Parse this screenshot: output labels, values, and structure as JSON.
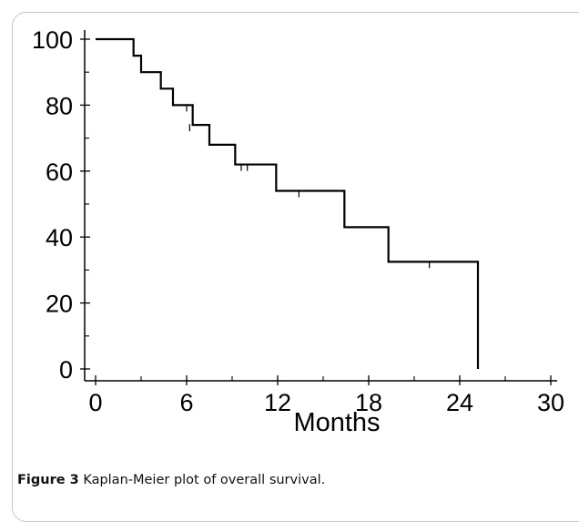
{
  "caption": {
    "label": "Figure 3",
    "text": "Kaplan-Meier plot of overall survival."
  },
  "colors": {
    "line": "#000000",
    "frame": "#c8c8c8"
  },
  "chart_data": {
    "type": "line",
    "subtype": "kaplan-meier-step",
    "title": "",
    "xlabel": "Months",
    "ylabel": "",
    "xlim": [
      0,
      30
    ],
    "ylim": [
      0,
      100
    ],
    "x_ticks": [
      0,
      6,
      12,
      18,
      24,
      30
    ],
    "y_ticks": [
      0,
      20,
      40,
      60,
      80,
      100
    ],
    "grid": false,
    "legend": "none",
    "series": [
      {
        "steps": [
          {
            "x": 0,
            "y": 100
          },
          {
            "x": 2.5,
            "y": 95
          },
          {
            "x": 3.0,
            "y": 90
          },
          {
            "x": 4.3,
            "y": 85
          },
          {
            "x": 5.1,
            "y": 80
          },
          {
            "x": 6.4,
            "y": 74
          },
          {
            "x": 7.5,
            "y": 68
          },
          {
            "x": 9.2,
            "y": 62
          },
          {
            "x": 11.9,
            "y": 54
          },
          {
            "x": 16.4,
            "y": 43
          },
          {
            "x": 19.3,
            "y": 32.5
          },
          {
            "x": 25.2,
            "y": 0
          }
        ],
        "censored": [
          {
            "x": 6.0,
            "y": 80
          },
          {
            "x": 6.2,
            "y": 74
          },
          {
            "x": 9.6,
            "y": 62
          },
          {
            "x": 10.0,
            "y": 62
          },
          {
            "x": 13.4,
            "y": 54
          },
          {
            "x": 22.0,
            "y": 32.5
          }
        ]
      }
    ]
  }
}
